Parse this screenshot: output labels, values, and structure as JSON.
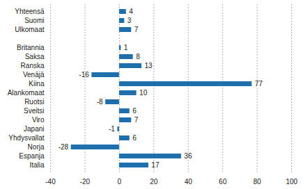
{
  "chart_data": {
    "type": "bar",
    "orientation": "horizontal",
    "categories": [
      "Yhteensä",
      "Suomi",
      "Ulkomaat",
      null,
      "Britannia",
      "Saksa",
      "Ranska",
      "Venäjä",
      "Kiina",
      "Alankomaat",
      "Ruotsi",
      "Sveitsi",
      "Viro",
      "Japani",
      "Yhdysvallat",
      "Norja",
      "Espanja",
      "Italia"
    ],
    "values": [
      4,
      3,
      7,
      null,
      1,
      8,
      13,
      -16,
      77,
      10,
      -8,
      6,
      7,
      -1,
      6,
      -28,
      36,
      17
    ],
    "color": "#1f6fad",
    "xlim": [
      -40,
      100
    ],
    "xticks": [
      -40,
      -20,
      0,
      20,
      40,
      60,
      80,
      100
    ],
    "grid": true,
    "data_labels": true
  }
}
